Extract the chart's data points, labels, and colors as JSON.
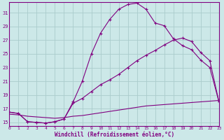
{
  "xlabel": "Windchill (Refroidissement éolien,°C)",
  "background_color": "#cce8e8",
  "grid_color": "#aacccc",
  "line_color": "#800080",
  "xlim": [
    0,
    23
  ],
  "ylim": [
    14.5,
    32.5
  ],
  "yticks": [
    15,
    17,
    19,
    21,
    23,
    25,
    27,
    29,
    31
  ],
  "xticks": [
    0,
    1,
    2,
    3,
    4,
    5,
    6,
    7,
    8,
    9,
    10,
    11,
    12,
    13,
    14,
    15,
    16,
    17,
    18,
    19,
    20,
    21,
    22,
    23
  ],
  "line1_x": [
    0,
    1,
    2,
    3,
    4,
    5,
    6,
    7,
    8,
    9,
    10,
    11,
    12,
    13,
    14,
    15,
    16,
    17,
    18,
    19,
    20,
    21,
    22,
    23
  ],
  "line1_y": [
    16.5,
    16.3,
    15.1,
    15.0,
    14.9,
    15.1,
    15.5,
    18.0,
    21.0,
    25.0,
    28.0,
    30.0,
    31.5,
    32.2,
    32.4,
    31.5,
    29.5,
    29.1,
    27.2,
    26.2,
    25.6,
    24.1,
    23.0,
    18.0
  ],
  "line2_x": [
    0,
    1,
    2,
    3,
    4,
    5,
    6,
    7,
    8,
    9,
    10,
    11,
    12,
    13,
    14,
    15,
    16,
    17,
    18,
    19,
    20,
    21,
    22,
    23
  ],
  "line2_y": [
    16.5,
    16.3,
    15.1,
    15.0,
    14.9,
    15.1,
    15.5,
    17.8,
    18.5,
    19.5,
    20.5,
    21.2,
    22.0,
    23.0,
    24.0,
    24.8,
    25.5,
    26.3,
    27.0,
    27.3,
    26.8,
    25.2,
    24.0,
    18.0
  ],
  "line3_x": [
    0,
    1,
    2,
    3,
    4,
    5,
    6,
    7,
    8,
    9,
    10,
    11,
    12,
    13,
    14,
    15,
    16,
    17,
    18,
    19,
    20,
    21,
    22,
    23
  ],
  "line3_y": [
    16.2,
    16.1,
    15.9,
    15.8,
    15.7,
    15.6,
    15.7,
    15.9,
    16.0,
    16.2,
    16.4,
    16.6,
    16.8,
    17.0,
    17.2,
    17.4,
    17.5,
    17.6,
    17.7,
    17.8,
    17.9,
    18.0,
    18.1,
    18.2
  ]
}
